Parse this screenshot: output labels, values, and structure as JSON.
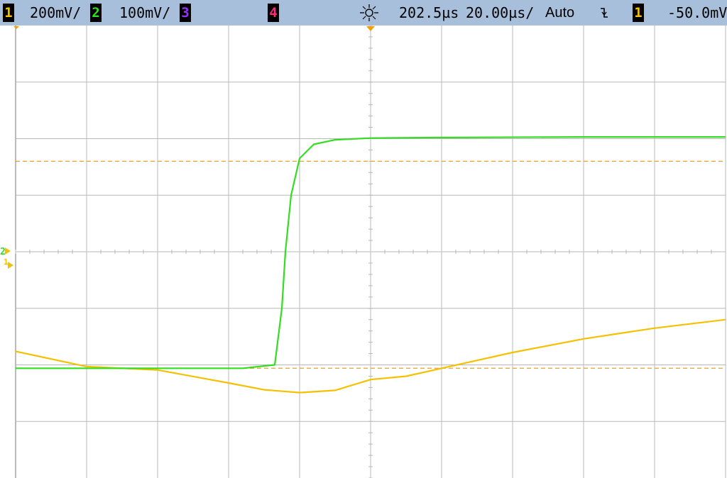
{
  "status_bar": {
    "ch1_label": "1",
    "ch1_scale": "200mV/",
    "ch2_label": "2",
    "ch2_scale": "100mV/",
    "ch3_label": "3",
    "ch4_label": "4",
    "time_delay": "202.5µs",
    "time_scale": "20.00µs/",
    "trigger_mode": "Auto",
    "trigger_slope_icon": "falling-edge-icon",
    "trigger_source": "1",
    "trigger_level": "-50.0mV",
    "colors": {
      "bar": "#a8bfdc",
      "ch1": "#f5c000",
      "ch2": "#33dd22",
      "ch3": "#9b30ff",
      "ch4": "#ff2a7a"
    }
  },
  "markers": {
    "ground_ch2_label": "2",
    "ground_ch1_label": "1"
  },
  "chart_data": {
    "type": "line",
    "title": "",
    "xlabel": "",
    "ylabel": "",
    "grid": true,
    "divisions": {
      "x": 10,
      "y": 8
    },
    "x_units": "div",
    "xlim": [
      -5,
      5
    ],
    "ylim": [
      -4,
      4
    ],
    "series": [
      {
        "channel": "1",
        "color": "#f5c000",
        "points": [
          [
            -5.0,
            -1.76
          ],
          [
            -4.0,
            -2.03
          ],
          [
            -3.0,
            -2.09
          ],
          [
            -2.0,
            -2.32
          ],
          [
            -1.5,
            -2.44
          ],
          [
            -1.0,
            -2.49
          ],
          [
            -0.5,
            -2.45
          ],
          [
            0.0,
            -2.26
          ],
          [
            0.5,
            -2.2
          ],
          [
            1.0,
            -2.06
          ],
          [
            2.0,
            -1.78
          ],
          [
            3.0,
            -1.54
          ],
          [
            4.0,
            -1.35
          ],
          [
            5.0,
            -1.2
          ]
        ]
      },
      {
        "channel": "2",
        "color": "#33dd22",
        "points": [
          [
            -5.0,
            -2.06
          ],
          [
            -1.8,
            -2.06
          ],
          [
            -1.35,
            -2.0
          ],
          [
            -1.25,
            -1.0
          ],
          [
            -1.2,
            0.0
          ],
          [
            -1.12,
            1.0
          ],
          [
            -1.0,
            1.65
          ],
          [
            -0.8,
            1.9
          ],
          [
            -0.5,
            1.98
          ],
          [
            0.0,
            2.01
          ],
          [
            1.0,
            2.02
          ],
          [
            3.0,
            2.03
          ],
          [
            5.0,
            2.03
          ]
        ]
      }
    ],
    "reference_levels": [
      1.6,
      -2.06
    ],
    "trigger_position": 0.0
  }
}
